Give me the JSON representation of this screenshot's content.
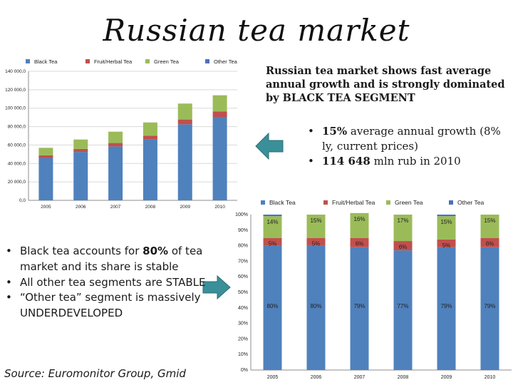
{
  "slide": {
    "title": "Russian tea market",
    "summary": "Russian tea market shows fast average annual growth and is strongly dominated by BLACK TEA SEGMENT",
    "growth_bullets": [
      {
        "strong": "15%",
        "text": " average annual growth (8% ly, current prices)"
      },
      {
        "strong": "114 648",
        "text": " mln rub in 2010"
      }
    ],
    "share_bullets": [
      {
        "pre": "Black tea accounts for ",
        "strong": "80%",
        "post": " of tea market and its share is stable"
      },
      {
        "pre": "All other tea segments are STABLE",
        "strong": "",
        "post": ""
      },
      {
        "pre": "“Other tea” segment is massively UNDERDEVELOPED",
        "strong": "",
        "post": ""
      }
    ],
    "source": "Source: Euromonitor Group, Gmid"
  },
  "colors": {
    "Black Tea": "#4f81bd",
    "Fruit/Herbal Tea": "#c0504d",
    "Green Tea": "#9bbb59",
    "Other Tea": "#4f6fbd",
    "arrow": "#3a8f98"
  },
  "chart_data": [
    {
      "type": "bar",
      "stacked": true,
      "title": "",
      "xlabel": "",
      "ylabel": "",
      "categories": [
        "2005",
        "2006",
        "2007",
        "2008",
        "2009",
        "2010"
      ],
      "ylim": [
        0,
        140000
      ],
      "yticks": [
        "0,0",
        "20 000,0",
        "40 000,0",
        "60 000,0",
        "80 000,0",
        "100 000,0",
        "120 000,0",
        "140 000,0"
      ],
      "legend_position": "top",
      "grid": true,
      "series": [
        {
          "name": "Black Tea",
          "values": [
            46000,
            52500,
            58500,
            66000,
            82500,
            90500
          ]
        },
        {
          "name": "Fruit/Herbal Tea",
          "values": [
            2900,
            3300,
            3700,
            4200,
            5200,
            6000
          ]
        },
        {
          "name": "Green Tea",
          "values": [
            8100,
            10200,
            12300,
            14300,
            17300,
            17500
          ]
        },
        {
          "name": "Other Tea",
          "values": [
            0,
            0,
            0,
            0,
            0,
            0
          ]
        }
      ]
    },
    {
      "type": "bar",
      "stacked": true,
      "percent": true,
      "title": "",
      "xlabel": "",
      "ylabel": "",
      "categories": [
        "2005",
        "2006",
        "2007",
        "2008",
        "2009",
        "2010"
      ],
      "ylim": [
        0,
        100
      ],
      "yticks": [
        "0%",
        "10%",
        "20%",
        "30%",
        "40%",
        "50%",
        "60%",
        "70%",
        "80%",
        "90%",
        "100%"
      ],
      "legend_position": "top",
      "grid": false,
      "series": [
        {
          "name": "Black Tea",
          "values": [
            80,
            80,
            79,
            77,
            79,
            79
          ],
          "labels": [
            "80%",
            "80%",
            "79%",
            "77%",
            "79%",
            "79%"
          ]
        },
        {
          "name": "Fruit/Herbal Tea",
          "values": [
            5,
            5,
            6,
            6,
            5,
            6
          ],
          "labels": [
            "5%",
            "5%",
            "6%",
            "6%",
            "5%",
            "6%"
          ]
        },
        {
          "name": "Green Tea",
          "values": [
            14,
            15,
            16,
            17,
            15,
            15
          ],
          "labels": [
            "14%",
            "15%",
            "16%",
            "17%",
            "15%",
            "15%"
          ]
        },
        {
          "name": "Other Tea",
          "values": [
            1,
            0,
            0,
            0,
            1,
            0
          ],
          "labels": []
        }
      ]
    }
  ]
}
